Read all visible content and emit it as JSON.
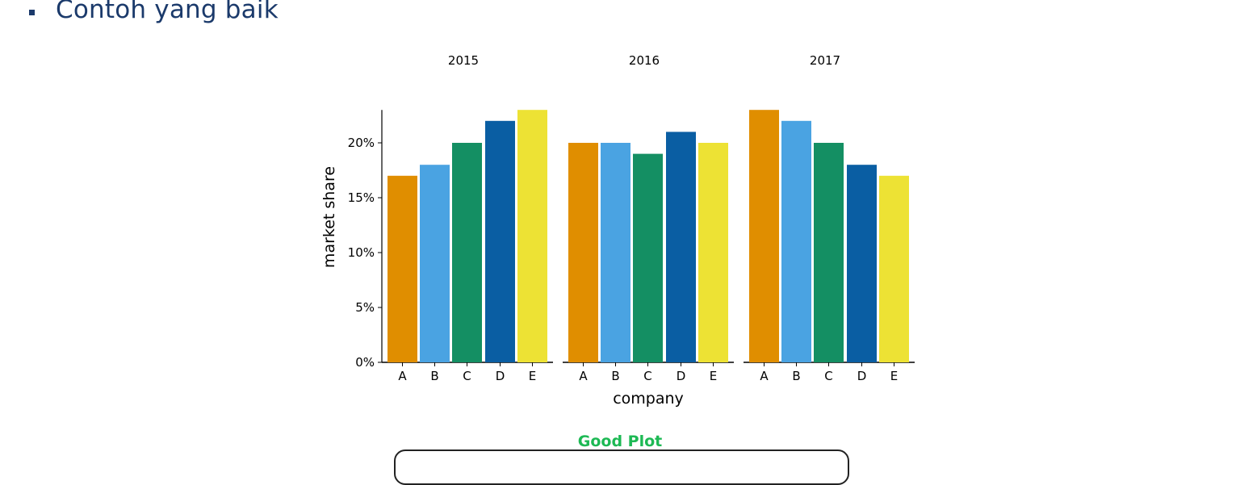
{
  "slide": {
    "bullet_text": "Contoh yang baik",
    "caption": "Good Plot"
  },
  "colors": {
    "A": "#E08E00",
    "B": "#4AA3E2",
    "C": "#148F63",
    "D": "#0A5EA3",
    "E": "#EDE234",
    "heading": "#1b3a6b",
    "caption": "#1db954"
  },
  "chart_data": {
    "type": "bar",
    "xlabel": "company",
    "ylabel": "market share",
    "ylim": [
      0,
      23
    ],
    "yticks": [
      0,
      5,
      10,
      15,
      20
    ],
    "ytick_labels": [
      "0%",
      "5%",
      "10%",
      "15%",
      "20%"
    ],
    "categories": [
      "A",
      "B",
      "C",
      "D",
      "E"
    ],
    "panels": [
      {
        "name": "2015",
        "values": [
          17,
          18,
          20,
          22,
          23
        ]
      },
      {
        "name": "2016",
        "values": [
          20,
          20,
          19,
          21,
          20
        ]
      },
      {
        "name": "2017",
        "values": [
          23,
          22,
          20,
          18,
          17
        ]
      }
    ]
  }
}
